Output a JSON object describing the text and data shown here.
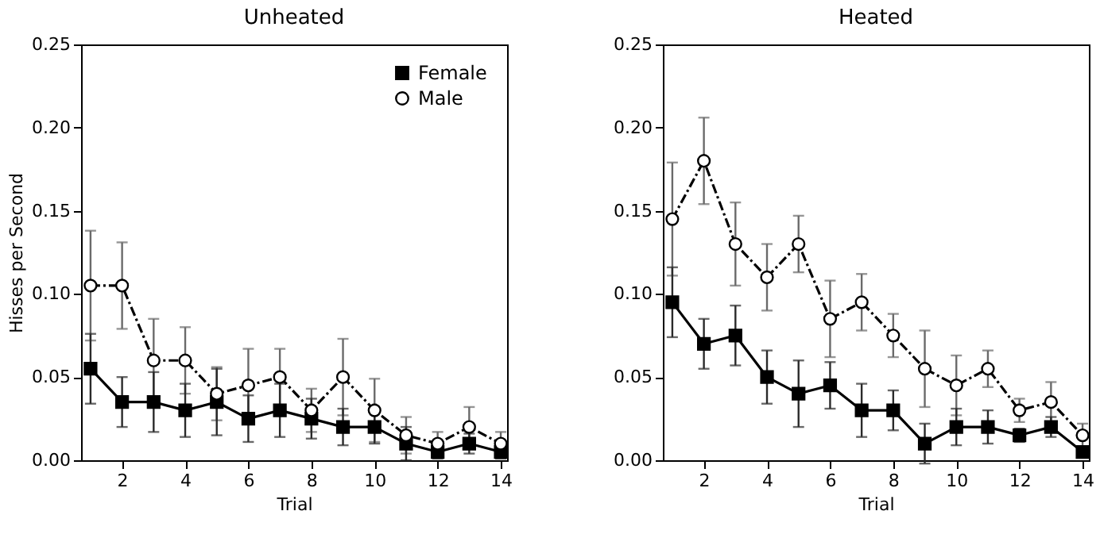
{
  "chart_data": [
    {
      "type": "line",
      "title": "Unheated",
      "xlabel": "Trial",
      "ylabel": "Hisses per Second",
      "x": [
        1,
        2,
        3,
        4,
        5,
        6,
        7,
        8,
        9,
        10,
        11,
        12,
        13,
        14
      ],
      "xlim": [
        0.7,
        14.2
      ],
      "xticks": [
        2,
        4,
        6,
        8,
        10,
        12,
        14
      ],
      "ylim": [
        0,
        0.25
      ],
      "yticks": [
        {
          "value": 0,
          "label": "0.00"
        },
        {
          "value": 0.05,
          "label": "0.05"
        },
        {
          "value": 0.1,
          "label": "0.10"
        },
        {
          "value": 0.15,
          "label": "0.15"
        },
        {
          "value": 0.2,
          "label": "0.20"
        },
        {
          "value": 0.25,
          "label": "0.25"
        }
      ],
      "grid": false,
      "legend": "top right",
      "series": [
        {
          "name": "Female",
          "color": "#000000",
          "marker": "square",
          "line_style": "solid",
          "values": [
            0.055,
            0.035,
            0.035,
            0.03,
            0.035,
            0.025,
            0.03,
            0.025,
            0.02,
            0.02,
            0.01,
            0.005,
            0.01,
            0.005
          ],
          "errors": [
            0.021,
            0.015,
            0.018,
            0.016,
            0.02,
            0.014,
            0.016,
            0.012,
            0.011,
            0.01,
            0.01,
            0.004,
            0.006,
            0.004
          ]
        },
        {
          "name": "Male",
          "color": "#000000",
          "marker": "circle",
          "line_style": "dashed",
          "values": [
            0.105,
            0.105,
            0.06,
            0.06,
            0.04,
            0.045,
            0.05,
            0.03,
            0.05,
            0.03,
            0.015,
            0.01,
            0.02,
            0.01
          ],
          "errors": [
            0.033,
            0.026,
            0.025,
            0.02,
            0.016,
            0.022,
            0.017,
            0.013,
            0.023,
            0.019,
            0.011,
            0.007,
            0.012,
            0.007
          ]
        }
      ]
    },
    {
      "type": "line",
      "title": "Heated",
      "xlabel": "Trial",
      "x": [
        1,
        2,
        3,
        4,
        5,
        6,
        7,
        8,
        9,
        10,
        11,
        12,
        13,
        14
      ],
      "xlim": [
        0.7,
        14.2
      ],
      "xticks": [
        2,
        4,
        6,
        8,
        10,
        12,
        14
      ],
      "ylim": [
        0,
        0.25
      ],
      "yticks": [
        {
          "value": 0,
          "label": "0.00"
        },
        {
          "value": 0.05,
          "label": "0.05"
        },
        {
          "value": 0.1,
          "label": "0.10"
        },
        {
          "value": 0.15,
          "label": "0.15"
        },
        {
          "value": 0.2,
          "label": "0.20"
        },
        {
          "value": 0.25,
          "label": "0.25"
        }
      ],
      "grid": false,
      "series": [
        {
          "color": "#000000",
          "marker": "square",
          "line_style": "solid",
          "values": [
            0.095,
            0.07,
            0.075,
            0.05,
            0.04,
            0.045,
            0.03,
            0.03,
            0.01,
            0.02,
            0.02,
            0.015,
            0.02,
            0.005
          ],
          "errors": [
            0.021,
            0.015,
            0.018,
            0.016,
            0.02,
            0.014,
            0.016,
            0.012,
            0.012,
            0.011,
            0.01,
            0.004,
            0.006,
            null
          ]
        },
        {
          "color": "#000000",
          "marker": "circle",
          "line_style": "dashed",
          "values": [
            0.145,
            0.18,
            0.13,
            0.11,
            0.13,
            0.085,
            0.095,
            0.075,
            0.055,
            0.045,
            0.055,
            0.03,
            0.035,
            0.015
          ],
          "errors": [
            0.034,
            0.026,
            0.025,
            0.02,
            0.017,
            0.023,
            0.017,
            0.013,
            0.023,
            0.018,
            0.011,
            0.007,
            0.012,
            0.007
          ]
        }
      ]
    }
  ]
}
